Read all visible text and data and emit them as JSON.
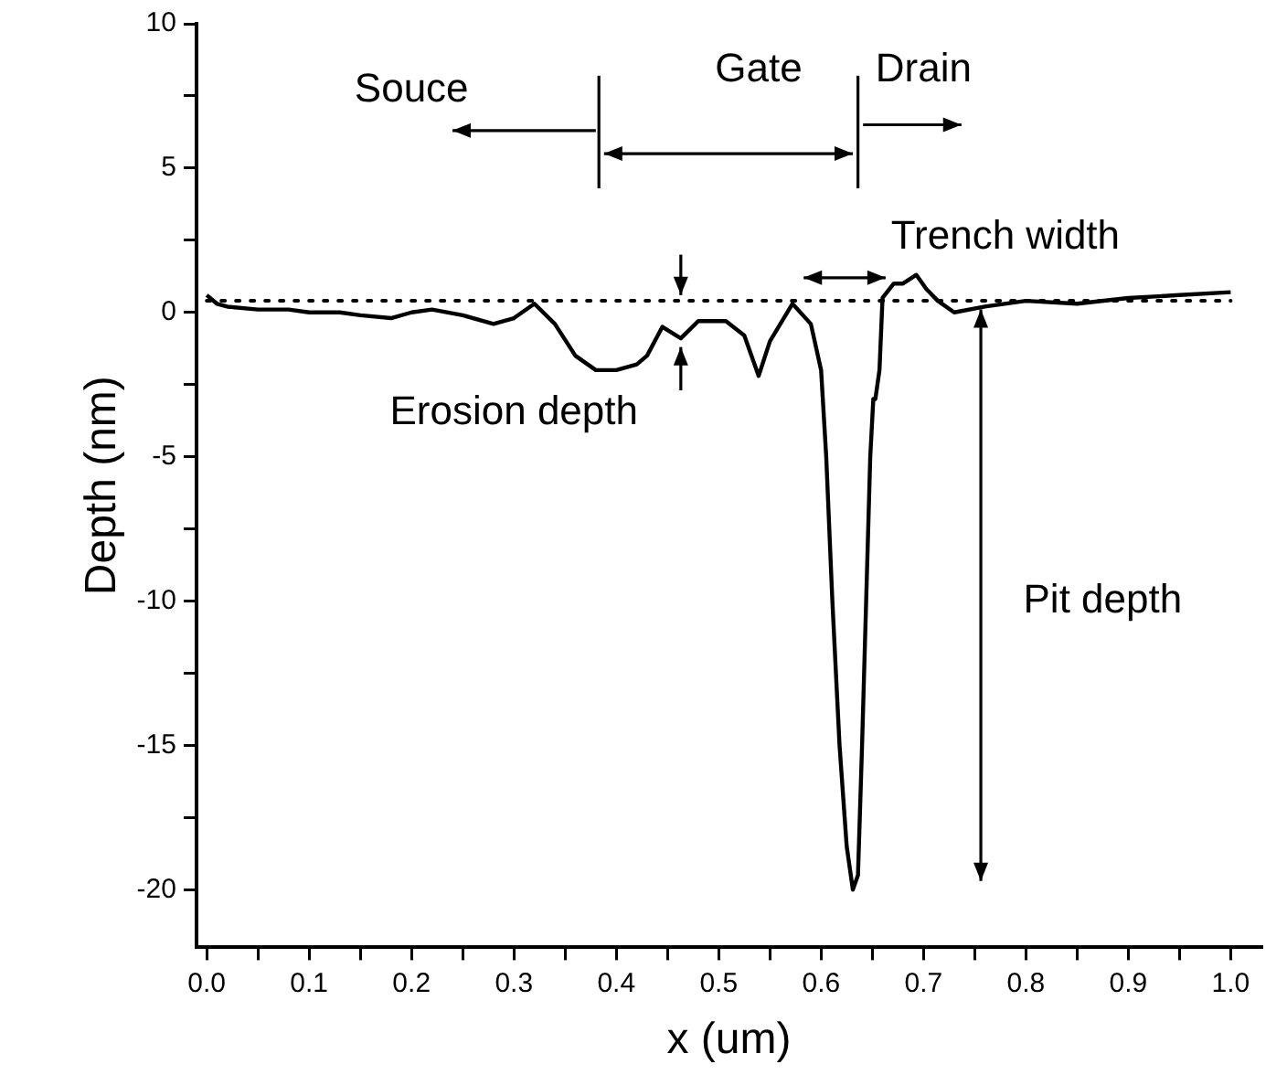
{
  "chart_data": {
    "type": "line",
    "xlabel": "x (um)",
    "ylabel": "Depth (nm)",
    "xlim": [
      -0.01,
      1.03
    ],
    "ylim": [
      -22,
      10
    ],
    "xticks": [
      {
        "value": 0.05,
        "label": null
      },
      {
        "value": 0,
        "label": "0.0"
      },
      0.1,
      {
        "value": 0.15,
        "label": null
      },
      0.2,
      {
        "value": 0.25,
        "label": null
      },
      0.3,
      {
        "value": 0.35,
        "label": null
      },
      0.4,
      {
        "value": 0.45,
        "label": null
      },
      0.5,
      {
        "value": 0.55,
        "label": null
      },
      0.6,
      {
        "value": 0.65,
        "label": null
      },
      0.7,
      {
        "value": 0.75,
        "label": null
      },
      0.8,
      {
        "value": 0.85,
        "label": null
      },
      0.9,
      {
        "value": 0.95,
        "label": null
      },
      {
        "value": 1,
        "label": "1.0"
      }
    ],
    "yticks": [
      {
        "value": -20,
        "label": "-20"
      },
      {
        "value": -17.5,
        "label": null
      },
      -15,
      {
        "value": -12.5,
        "label": null
      },
      -10,
      {
        "value": -7.5,
        "label": null
      },
      -5,
      {
        "value": -2.5,
        "label": null
      },
      0,
      {
        "value": 2.5,
        "label": null
      },
      5,
      {
        "value": 7.5,
        "label": null
      },
      10
    ],
    "grid": false,
    "legend": false,
    "marker": "none",
    "line_style": "solid",
    "series": [
      {
        "color": "#000000",
        "x": [
          0,
          0.01,
          0.02,
          0.05,
          0.08,
          0.1,
          0.13,
          0.15,
          0.18,
          0.2,
          0.22,
          0.25,
          0.28,
          0.3,
          0.32,
          0.34,
          0.36,
          0.38,
          0.4,
          0.42,
          0.43,
          0.445,
          0.463,
          0.48,
          0.507,
          0.525,
          0.539,
          0.55,
          0.572,
          0.59,
          0.6,
          0.605,
          0.611,
          0.618,
          0.625,
          0.631,
          0.636,
          0.64,
          0.648,
          0.651,
          0.653,
          0.657,
          0.66,
          0.671,
          0.68,
          0.693,
          0.703,
          0.714,
          0.73,
          0.76,
          0.8,
          0.85,
          0.9,
          0.95,
          1.0
        ],
        "values": [
          0.6,
          0.3,
          0.2,
          0.1,
          0.1,
          0.0,
          0.0,
          -0.1,
          -0.2,
          0.0,
          0.1,
          -0.1,
          -0.4,
          -0.2,
          0.3,
          -0.4,
          -1.5,
          -2.0,
          -2.0,
          -1.8,
          -1.5,
          -0.5,
          -0.9,
          -0.3,
          -0.3,
          -0.8,
          -2.2,
          -1.0,
          0.3,
          -0.4,
          -2.0,
          -5.0,
          -10.0,
          -15.0,
          -18.5,
          -20.0,
          -19.5,
          -15.0,
          -5.0,
          -3.0,
          -3.0,
          -2.0,
          0.5,
          1.0,
          1.0,
          1.3,
          0.8,
          0.4,
          0.0,
          0.2,
          0.4,
          0.3,
          0.5,
          0.6,
          0.7
        ]
      }
    ],
    "ref_lines": [
      {
        "axis": "y",
        "value": 0.4,
        "line_style": "dotted",
        "color": "#000000"
      }
    ],
    "annotations": [
      "Souce",
      "Gate",
      "Drain",
      "Trench width",
      "Erosion depth",
      "Pit depth"
    ]
  }
}
